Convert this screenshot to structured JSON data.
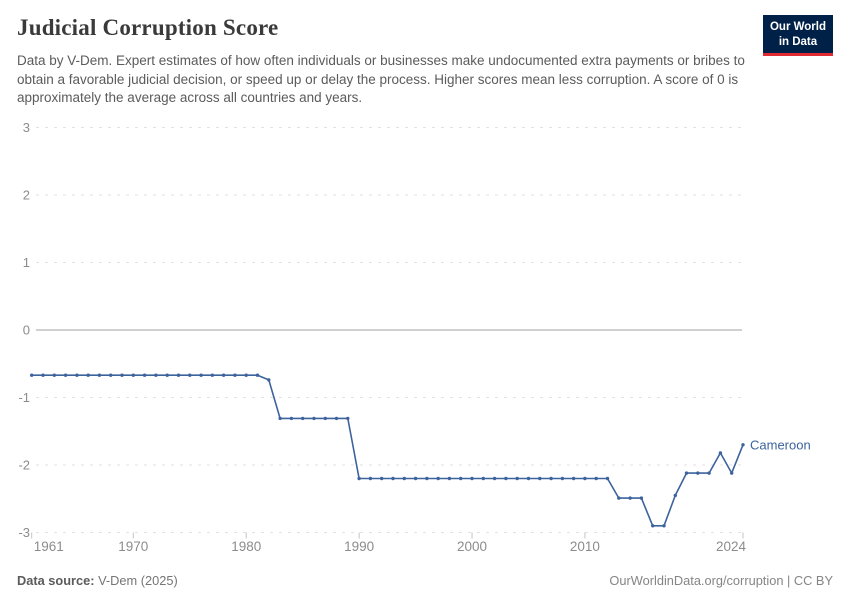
{
  "header": {
    "title": "Judicial Corruption Score",
    "subtitle": "Data by V-Dem. Expert estimates of how often individuals or businesses make undocumented extra payments or bribes to obtain a favorable judicial decision, or speed up or delay the process. Higher scores mean less corruption. A score of 0 is approximately the average across all countries and years.",
    "logo_line1": "Our World",
    "logo_line2": "in Data"
  },
  "colors": {
    "series_blue": "#3d639d",
    "logo_navy": "#002147",
    "logo_red": "#e02b35",
    "gridline": "#e2e2e2",
    "zero_line": "#a0a0a0",
    "axis_label": "#8c8c8c",
    "tick_mark": "#c4c4c4"
  },
  "chart_data": {
    "type": "line",
    "title": "Judicial Corruption Score",
    "xlabel": "",
    "ylabel": "",
    "xlim": [
      1961,
      2024
    ],
    "ylim": [
      -3,
      3
    ],
    "x_ticks": [
      1961,
      1970,
      1980,
      1990,
      2000,
      2010,
      2024
    ],
    "y_ticks": [
      3,
      2,
      1,
      0,
      -1,
      -2,
      -3
    ],
    "grid": "horizontal-dashed, zero-line-solid",
    "legend_position": "end-of-line-label",
    "x": [
      1961,
      1962,
      1963,
      1964,
      1965,
      1966,
      1967,
      1968,
      1969,
      1970,
      1971,
      1972,
      1973,
      1974,
      1975,
      1976,
      1977,
      1978,
      1979,
      1980,
      1981,
      1982,
      1983,
      1984,
      1985,
      1986,
      1987,
      1988,
      1989,
      1990,
      1991,
      1992,
      1993,
      1994,
      1995,
      1996,
      1997,
      1998,
      1999,
      2000,
      2001,
      2002,
      2003,
      2004,
      2005,
      2006,
      2007,
      2008,
      2009,
      2010,
      2011,
      2012,
      2013,
      2014,
      2015,
      2016,
      2017,
      2018,
      2019,
      2020,
      2021,
      2022,
      2023,
      2024
    ],
    "series": [
      {
        "name": "Cameroon",
        "values": [
          -0.67,
          -0.67,
          -0.67,
          -0.67,
          -0.67,
          -0.67,
          -0.67,
          -0.67,
          -0.67,
          -0.67,
          -0.67,
          -0.67,
          -0.67,
          -0.67,
          -0.67,
          -0.67,
          -0.67,
          -0.67,
          -0.67,
          -0.67,
          -0.67,
          -0.74,
          -1.31,
          -1.31,
          -1.31,
          -1.31,
          -1.31,
          -1.31,
          -1.31,
          -2.2,
          -2.2,
          -2.2,
          -2.2,
          -2.2,
          -2.2,
          -2.2,
          -2.2,
          -2.2,
          -2.2,
          -2.2,
          -2.2,
          -2.2,
          -2.2,
          -2.2,
          -2.2,
          -2.2,
          -2.2,
          -2.2,
          -2.2,
          -2.2,
          -2.2,
          -2.2,
          -2.49,
          -2.49,
          -2.49,
          -2.9,
          -2.9,
          -2.45,
          -2.12,
          -2.12,
          -2.12,
          -1.82,
          -2.12,
          -1.7
        ]
      }
    ]
  },
  "footer": {
    "source_label": "Data source:",
    "source_value": " V-Dem (2025)",
    "note_right": "OurWorldinData.org/corruption | CC BY"
  }
}
